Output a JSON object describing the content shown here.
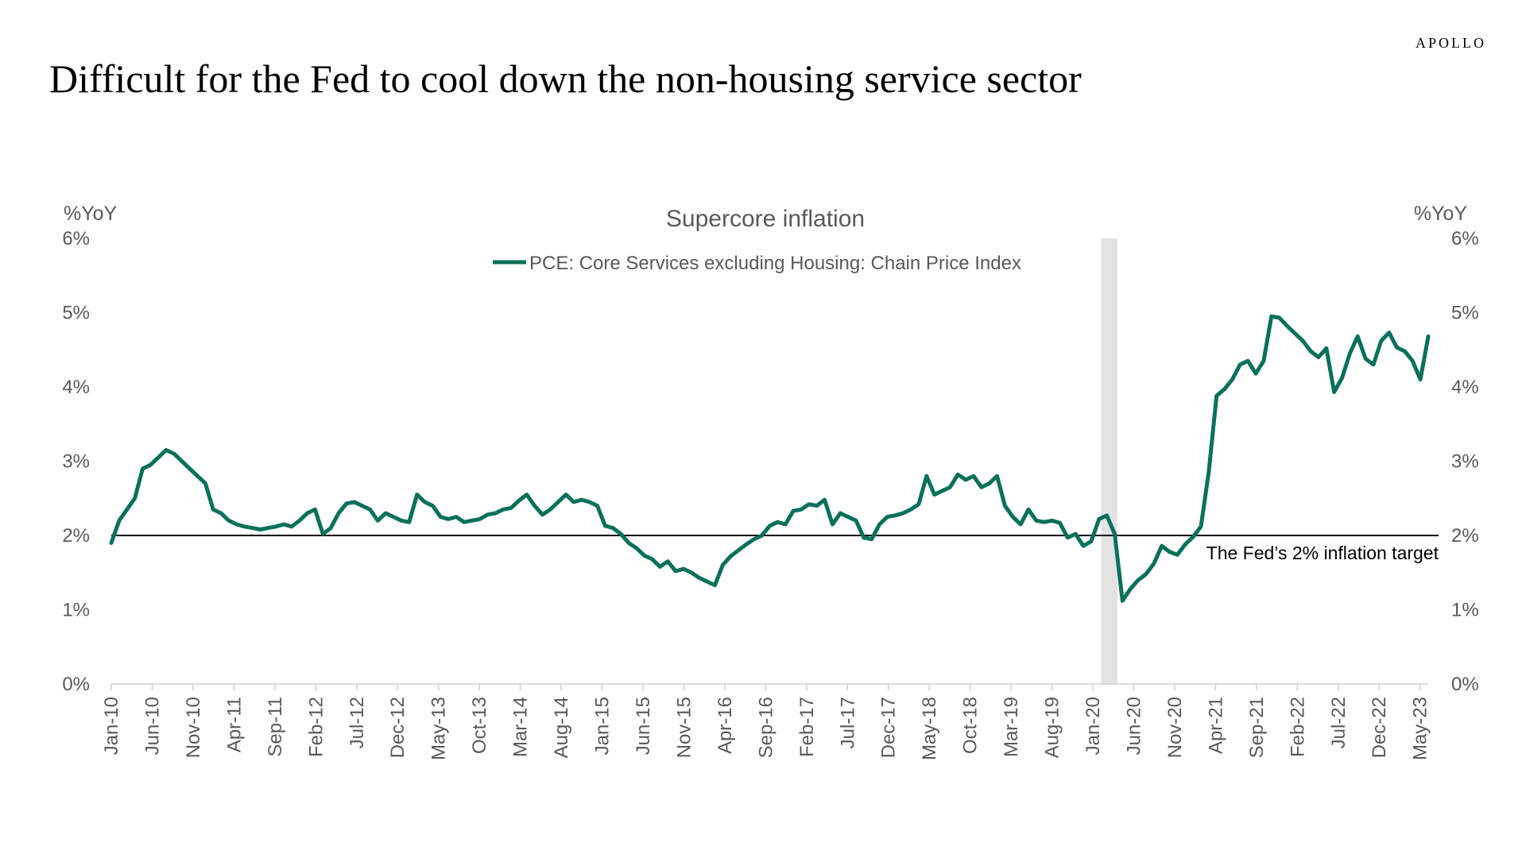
{
  "brand": "APOLLO",
  "headline": "Difficult for the Fed to cool down the non-housing service sector",
  "chart_data": {
    "type": "line",
    "title": "Supercore inflation",
    "y_unit_left": "%YoY",
    "y_unit_right": "%YoY",
    "ylim": [
      0,
      6
    ],
    "y_ticks": [
      0,
      1,
      2,
      3,
      4,
      5,
      6
    ],
    "y_tick_format": "%",
    "x_start": "2010-01",
    "x_end": "2023-06",
    "x_tick_labels": [
      "Jan-10",
      "Jun-10",
      "Nov-10",
      "Apr-11",
      "Sep-11",
      "Feb-12",
      "Jul-12",
      "Dec-12",
      "May-13",
      "Oct-13",
      "Mar-14",
      "Aug-14",
      "Jan-15",
      "Jun-15",
      "Nov-15",
      "Apr-16",
      "Sep-16",
      "Feb-17",
      "Jul-17",
      "Dec-17",
      "May-18",
      "Oct-18",
      "Mar-19",
      "Aug-19",
      "Jan-20",
      "Jun-20",
      "Nov-20",
      "Apr-21",
      "Sep-21",
      "Feb-22",
      "Jul-22",
      "Dec-22",
      "May-23"
    ],
    "grid": false,
    "legend_position": "top-center",
    "colors": {
      "series": "#0a7159",
      "recession": "#e3e3e3",
      "reference_line": "#000000",
      "text": "#595959"
    },
    "recession_shading": {
      "start": "2020-02",
      "end": "2020-04"
    },
    "reference_line": {
      "y": 2,
      "label": "The Fed’s 2% inflation target"
    },
    "series": [
      {
        "name": "PCE: Core Services excluding Housing: Chain Price Index",
        "values": [
          1.9,
          2.2,
          2.35,
          2.5,
          2.9,
          2.95,
          3.05,
          3.15,
          3.1,
          3.0,
          2.9,
          2.8,
          2.7,
          2.35,
          2.3,
          2.2,
          2.15,
          2.12,
          2.1,
          2.08,
          2.1,
          2.12,
          2.15,
          2.12,
          2.2,
          2.3,
          2.35,
          2.02,
          2.1,
          2.3,
          2.43,
          2.45,
          2.4,
          2.35,
          2.2,
          2.3,
          2.25,
          2.2,
          2.18,
          2.55,
          2.45,
          2.4,
          2.25,
          2.22,
          2.25,
          2.18,
          2.2,
          2.22,
          2.28,
          2.3,
          2.35,
          2.37,
          2.47,
          2.55,
          2.4,
          2.28,
          2.35,
          2.45,
          2.55,
          2.45,
          2.48,
          2.45,
          2.4,
          2.13,
          2.1,
          2.02,
          1.9,
          1.83,
          1.73,
          1.68,
          1.58,
          1.65,
          1.52,
          1.55,
          1.5,
          1.43,
          1.38,
          1.33,
          1.6,
          1.72,
          1.8,
          1.88,
          1.95,
          2.0,
          2.13,
          2.18,
          2.15,
          2.33,
          2.35,
          2.42,
          2.4,
          2.48,
          2.15,
          2.3,
          2.25,
          2.2,
          1.97,
          1.95,
          2.15,
          2.25,
          2.27,
          2.3,
          2.35,
          2.42,
          2.8,
          2.55,
          2.6,
          2.65,
          2.82,
          2.75,
          2.8,
          2.65,
          2.7,
          2.8,
          2.4,
          2.25,
          2.15,
          2.35,
          2.2,
          2.18,
          2.2,
          2.17,
          1.97,
          2.02,
          1.86,
          1.92,
          2.22,
          2.27,
          2.02,
          1.12,
          1.28,
          1.4,
          1.48,
          1.62,
          1.86,
          1.78,
          1.74,
          1.88,
          1.98,
          2.12,
          2.85,
          3.88,
          3.97,
          4.1,
          4.3,
          4.35,
          4.18,
          4.35,
          4.95,
          4.93,
          4.82,
          4.72,
          4.62,
          4.48,
          4.4,
          4.52,
          3.93,
          4.12,
          4.45,
          4.68,
          4.38,
          4.3,
          4.62,
          4.73,
          4.53,
          4.48,
          4.35,
          4.1,
          4.68
        ]
      }
    ]
  }
}
